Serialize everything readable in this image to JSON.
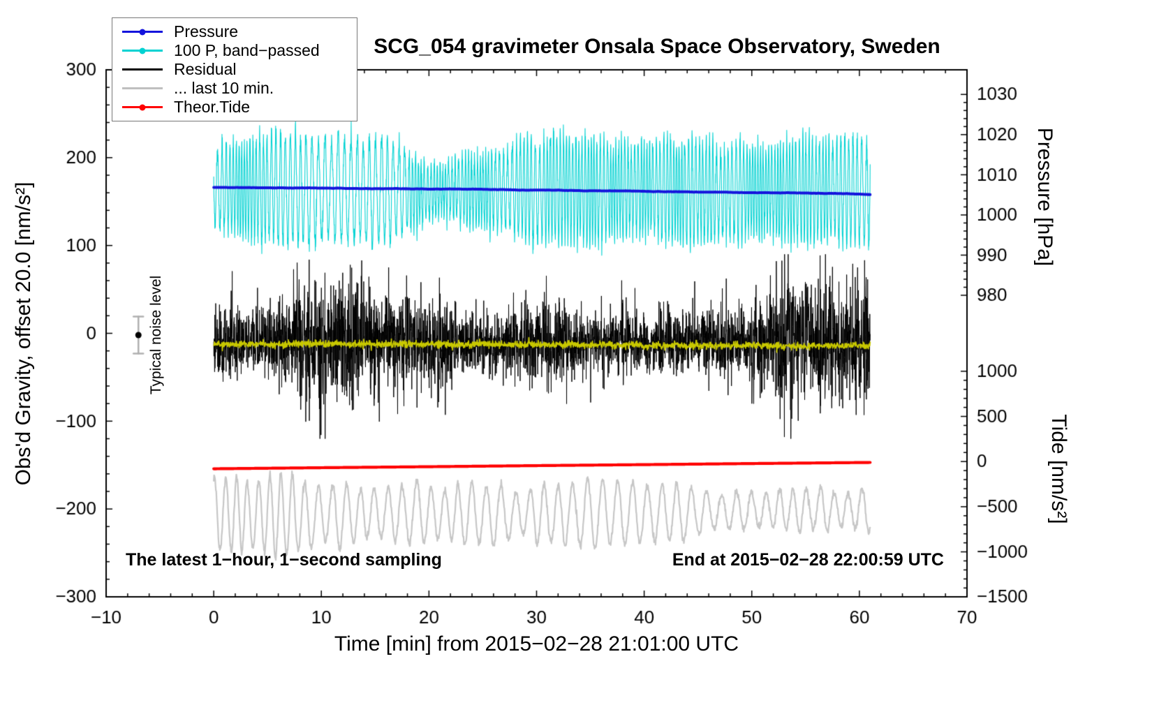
{
  "chart_data": {
    "type": "line",
    "title": "SCG_054 gravimeter Onsala Space Observatory, Sweden",
    "annotations": {
      "sampling": "The latest 1−hour, 1−second sampling",
      "end_time": "End at 2015−02−28 22:00:59 UTC",
      "noise_label": "Typical noise level"
    },
    "axes": {
      "x": {
        "label": "Time [min] from 2015−02−28 21:01:00 UTC",
        "min": -10,
        "max": 70,
        "major": [
          -10,
          0,
          10,
          20,
          30,
          40,
          50,
          60,
          70
        ],
        "minor_step": 2
      },
      "left": {
        "label": "Obs'd Gravity, offset 20.0 [nm/s²]",
        "min": -300,
        "max": 300,
        "major": [
          -300,
          -200,
          -100,
          0,
          100,
          200,
          300
        ],
        "minor_step": 20
      },
      "right_pressure": {
        "label": "Pressure [hPa]",
        "major": [
          980,
          990,
          1000,
          1010,
          1020,
          1030
        ],
        "minor_step": 2,
        "left_at_980": 43.3,
        "left_per_unit": 4.573
      },
      "right_tide": {
        "label": "Tide [nm/s²]",
        "major": [
          -1500,
          -1000,
          -500,
          0,
          500,
          1000
        ],
        "minor_step": 100,
        "left_at_0": -146,
        "left_per_unit": 0.1028
      }
    },
    "legend": [
      {
        "label": "Pressure",
        "color": "#1414dc",
        "marker": "line-dot"
      },
      {
        "label": "100 P, band−passed",
        "color": "#00d2d2",
        "marker": "line-dot"
      },
      {
        "label": "Residual",
        "color": "#000000",
        "marker": "line"
      },
      {
        "label": "... last 10 min.",
        "color": "#bfbfbf",
        "marker": "line"
      },
      {
        "label": "Theor.Tide",
        "color": "#ff0000",
        "marker": "line-dot"
      }
    ],
    "noise_marker": {
      "x": -7,
      "y": -2,
      "err": 21
    },
    "series": [
      {
        "name": "... last 10 min.",
        "color": "#c6c6c6",
        "width": 2.2,
        "axis": "left",
        "type": "oscnoise",
        "seed": 51,
        "n": 1830,
        "x_start": 0,
        "x_end": 61,
        "center": -206,
        "center_drift": 10,
        "amp_min": 18,
        "amp_max": 68,
        "period_min": 40,
        "period_max": 85,
        "noise": 2
      },
      {
        "name": "100 P, band−passed",
        "color": "#00d2d2",
        "width": 1.1,
        "axis": "left",
        "type": "oscnoise",
        "seed": 21,
        "n": 3660,
        "x_start": 0,
        "x_end": 61,
        "center": 165,
        "center_drift": 4,
        "amp_min": 22,
        "amp_max": 62,
        "period_min": 14,
        "period_max": 38,
        "noise": 6
      },
      {
        "name": "Residual",
        "color": "#000000",
        "width": 1,
        "axis": "left",
        "type": "noise",
        "seed": 31,
        "n": 3660,
        "x_start": 0,
        "x_end": 61,
        "center": -10,
        "sigma": 26,
        "env_min": 0.45,
        "env_max": 1.6,
        "spike_p": 0.004,
        "spike_mult": 2.2
      },
      {
        "name": "Residual (smoothed)",
        "color": "#c8c800",
        "width": 1.8,
        "axis": "left",
        "type": "wander",
        "seed": 41,
        "n": 1830,
        "x_start": 0,
        "x_end": 61,
        "center": -12,
        "sigma": 2,
        "drift": 4
      },
      {
        "name": "Pressure",
        "color": "#1414dc",
        "width": 4,
        "axis": "pressure",
        "type": "smooth",
        "seed": 11,
        "jitter": 0.5,
        "x": [
          0,
          5,
          10,
          15,
          20,
          25,
          30,
          35,
          40,
          45,
          50,
          55,
          60,
          61
        ],
        "y": [
          1006.85,
          1006.78,
          1006.68,
          1006.58,
          1006.5,
          1006.4,
          1006.28,
          1006.12,
          1005.95,
          1005.78,
          1005.6,
          1005.42,
          1005.22,
          1005.18
        ]
      },
      {
        "name": "Theor.Tide",
        "color": "#ff0000",
        "width": 4.2,
        "axis": "tide",
        "type": "smooth",
        "seed": 61,
        "jitter": 0,
        "x": [
          0,
          10,
          20,
          30,
          40,
          50,
          61
        ],
        "y": [
          -80,
          -68,
          -57,
          -45,
          -34,
          -22,
          -10
        ]
      }
    ]
  }
}
